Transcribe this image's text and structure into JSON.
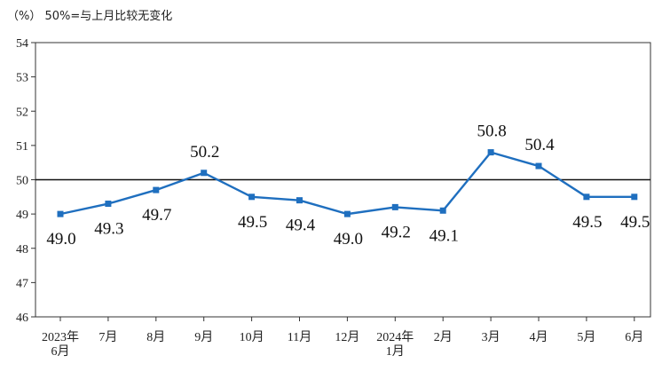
{
  "chart_data": {
    "type": "line",
    "title": "",
    "unit_note": "（%） 50%=与上月比较无变化",
    "xlabel": "",
    "ylabel": "",
    "ylim": [
      46,
      54
    ],
    "yticks": [
      46,
      47,
      48,
      49,
      50,
      51,
      52,
      53,
      54
    ],
    "reference_line": 50,
    "grid": false,
    "categories": [
      [
        "2023年",
        "6月"
      ],
      [
        "7月"
      ],
      [
        "8月"
      ],
      [
        "9月"
      ],
      [
        "10月"
      ],
      [
        "11月"
      ],
      [
        "12月"
      ],
      [
        "2024年",
        "1月"
      ],
      [
        "2月"
      ],
      [
        "3月"
      ],
      [
        "4月"
      ],
      [
        "5月"
      ],
      [
        "6月"
      ]
    ],
    "series": [
      {
        "values": [
          49.0,
          49.3,
          49.7,
          50.2,
          49.5,
          49.4,
          49.0,
          49.2,
          49.1,
          50.8,
          50.4,
          49.5,
          49.5
        ],
        "labels": [
          "49.0",
          "49.3",
          "49.7",
          "50.2",
          "49.5",
          "49.4",
          "49.0",
          "49.2",
          "49.1",
          "50.8",
          "50.4",
          "49.5",
          "49.5"
        ],
        "label_position": [
          "below",
          "below",
          "below",
          "above",
          "below",
          "below",
          "below",
          "below",
          "below",
          "above",
          "above",
          "below",
          "below"
        ],
        "color": "#1f6fbf"
      }
    ]
  }
}
